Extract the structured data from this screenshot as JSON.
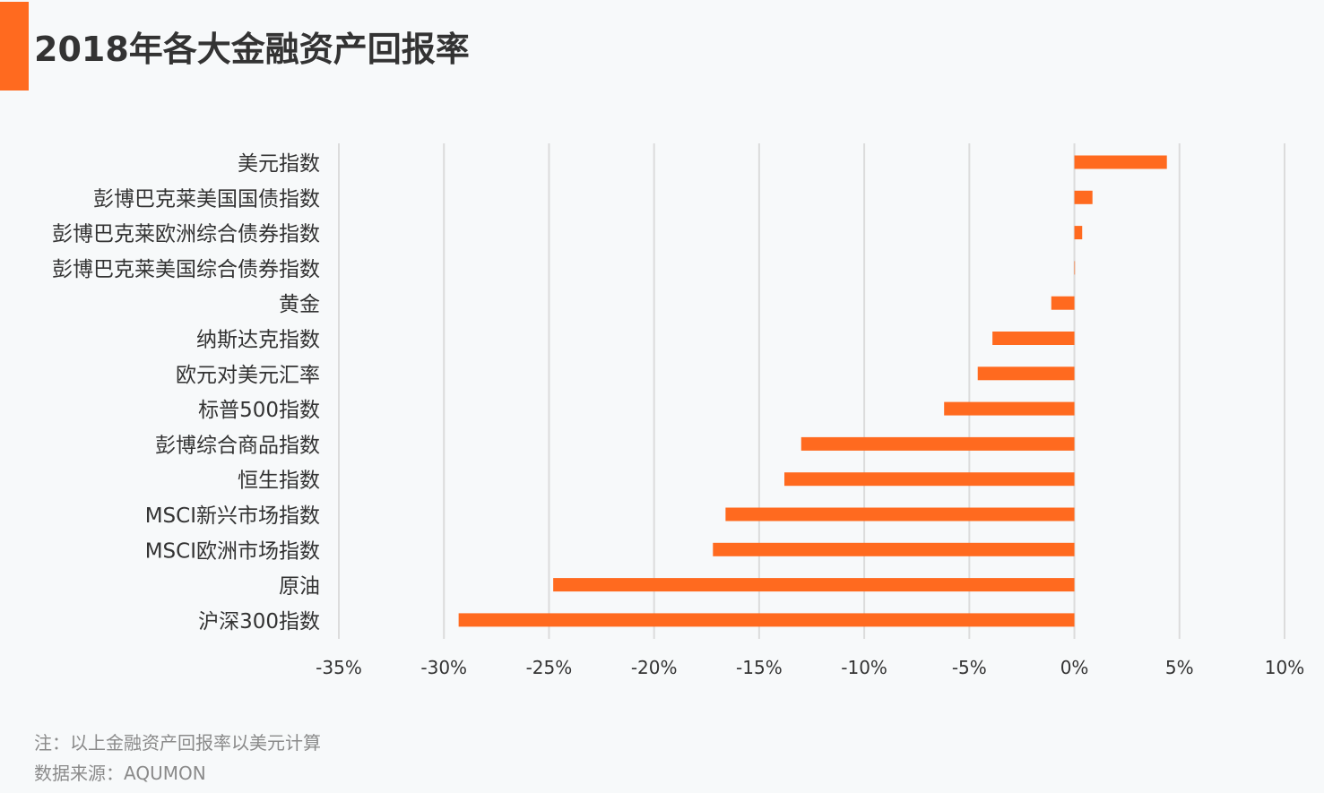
{
  "title": "2018年各大金融资产回报率",
  "colors": {
    "accent": "#ff6a1f",
    "bar": "#ff6a1f",
    "grid": "#dcdcdc",
    "text": "#333333",
    "note": "#8a8a8a"
  },
  "chart_data": {
    "type": "bar",
    "orientation": "horizontal",
    "title": "2018年各大金融资产回报率",
    "xlabel": "",
    "ylabel": "",
    "xlim": [
      -35,
      10
    ],
    "x_ticks": [
      -35,
      -30,
      -25,
      -20,
      -15,
      -10,
      -5,
      0,
      5,
      10
    ],
    "x_tick_labels": [
      "-35%",
      "-30%",
      "-25%",
      "-20%",
      "-15%",
      "-10%",
      "-5%",
      "0%",
      "5%",
      "10%"
    ],
    "grid": true,
    "categories": [
      "美元指数",
      "彭博巴克莱美国国债指数",
      "彭博巴克莱欧洲综合债券指数",
      "彭博巴克莱美国综合债券指数",
      "黄金",
      "纳斯达克指数",
      "欧元对美元汇率",
      "标普500指数",
      "彭博综合商品指数",
      "恒生指数",
      "MSCI新兴市场指数",
      "MSCI欧洲市场指数",
      "原油",
      "沪深300指数"
    ],
    "values": [
      4.4,
      0.86,
      0.37,
      0.01,
      -1.1,
      -3.9,
      -4.6,
      -6.2,
      -13.0,
      -13.8,
      -16.6,
      -17.2,
      -24.8,
      -29.3
    ]
  },
  "notes": {
    "note": "注：以上金融资产回报率以美元计算",
    "source": "数据来源：AQUMON"
  }
}
